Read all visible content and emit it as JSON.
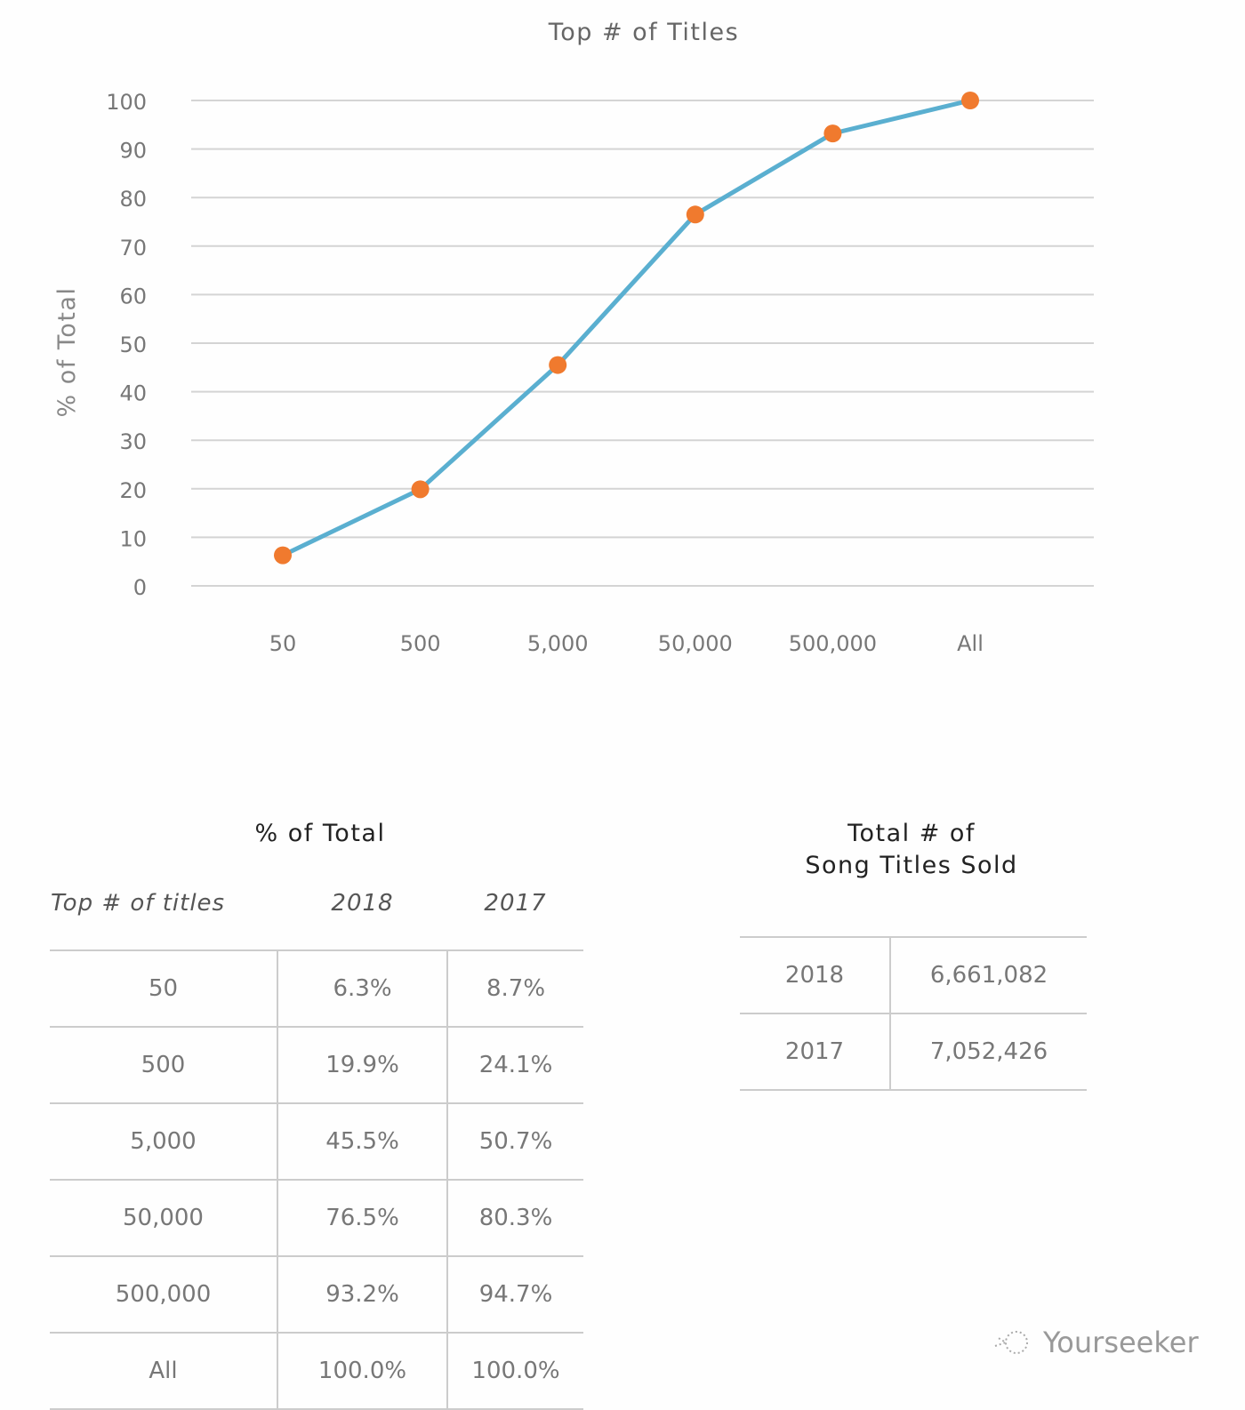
{
  "chart_data": {
    "type": "line",
    "title": "Top # of Titles",
    "ylabel": "% of Total",
    "xlabel": "",
    "categories": [
      "50",
      "500",
      "5,000",
      "50,000",
      "500,000",
      "All"
    ],
    "values": [
      6.3,
      19.9,
      45.5,
      76.5,
      93.2,
      100.0
    ],
    "ylim": [
      0,
      100
    ],
    "yticks": [
      0,
      10,
      20,
      30,
      40,
      50,
      60,
      70,
      80,
      90,
      100
    ],
    "grid": true,
    "colors": {
      "line": "#5aafd0",
      "marker": "#f07a2e",
      "grid": "#d4d4d4"
    }
  },
  "share_table": {
    "title": "% of Total",
    "headers": [
      "Top # of titles",
      "2018",
      "2017"
    ],
    "rows": [
      [
        "50",
        "6.3%",
        "8.7%"
      ],
      [
        "500",
        "19.9%",
        "24.1%"
      ],
      [
        "5,000",
        "45.5%",
        "50.7%"
      ],
      [
        "50,000",
        "76.5%",
        "80.3%"
      ],
      [
        "500,000",
        "93.2%",
        "94.7%"
      ],
      [
        "All",
        "100.0%",
        "100.0%"
      ]
    ]
  },
  "totals_table": {
    "title_line1": "Total # of",
    "title_line2": "Song Titles Sold",
    "rows": [
      [
        "2018",
        "6,661,082"
      ],
      [
        "2017",
        "7,052,426"
      ]
    ]
  },
  "watermark": {
    "text": "Yourseeker",
    "icon": "dotted-fish-logo-icon"
  }
}
